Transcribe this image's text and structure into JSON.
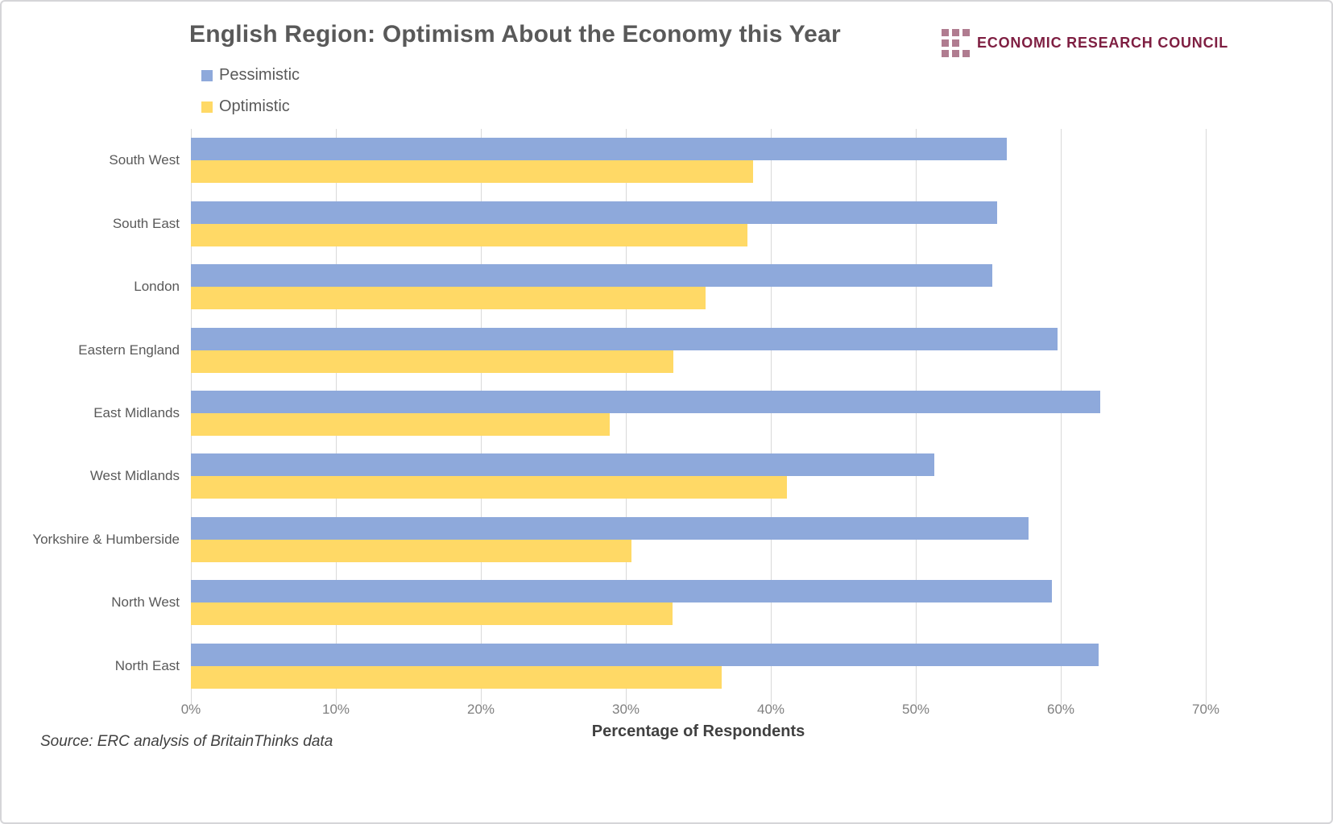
{
  "page": {
    "source_note": "Source: ERC analysis of BritainThinks data"
  },
  "logo": {
    "text": "ECONOMIC RESEARCH COUNCIL",
    "text_color": "#7e1e41",
    "square_color": "#b07c90"
  },
  "legend": [
    {
      "label": "Pessimistic",
      "color": "#8ea9db"
    },
    {
      "label": "Optimistic",
      "color": "#ffd966"
    }
  ],
  "chart_data": {
    "type": "bar",
    "orientation": "horizontal",
    "title": "English Region: Optimism About the Economy this Year",
    "categories": [
      "South West",
      "South East",
      "London",
      "Eastern England",
      "East Midlands",
      "West Midlands",
      "Yorkshire & Humberside",
      "North West",
      "North East"
    ],
    "series": [
      {
        "name": "Pessimistic",
        "color": "#8ea9db",
        "values": [
          56.3,
          55.6,
          55.3,
          59.8,
          62.7,
          51.3,
          57.8,
          59.4,
          62.6
        ]
      },
      {
        "name": "Optimistic",
        "color": "#ffd966",
        "values": [
          38.8,
          38.4,
          35.5,
          33.3,
          28.9,
          41.1,
          30.4,
          33.2,
          36.6
        ]
      }
    ],
    "xlabel": "Percentage of Respondents",
    "x_ticks": [
      "0%",
      "10%",
      "20%",
      "30%",
      "40%",
      "50%",
      "60%",
      "70%"
    ],
    "xlim": [
      0,
      70
    ],
    "grid": true,
    "gridline_color": "#d9d9d9",
    "legend_position": "top-left"
  }
}
